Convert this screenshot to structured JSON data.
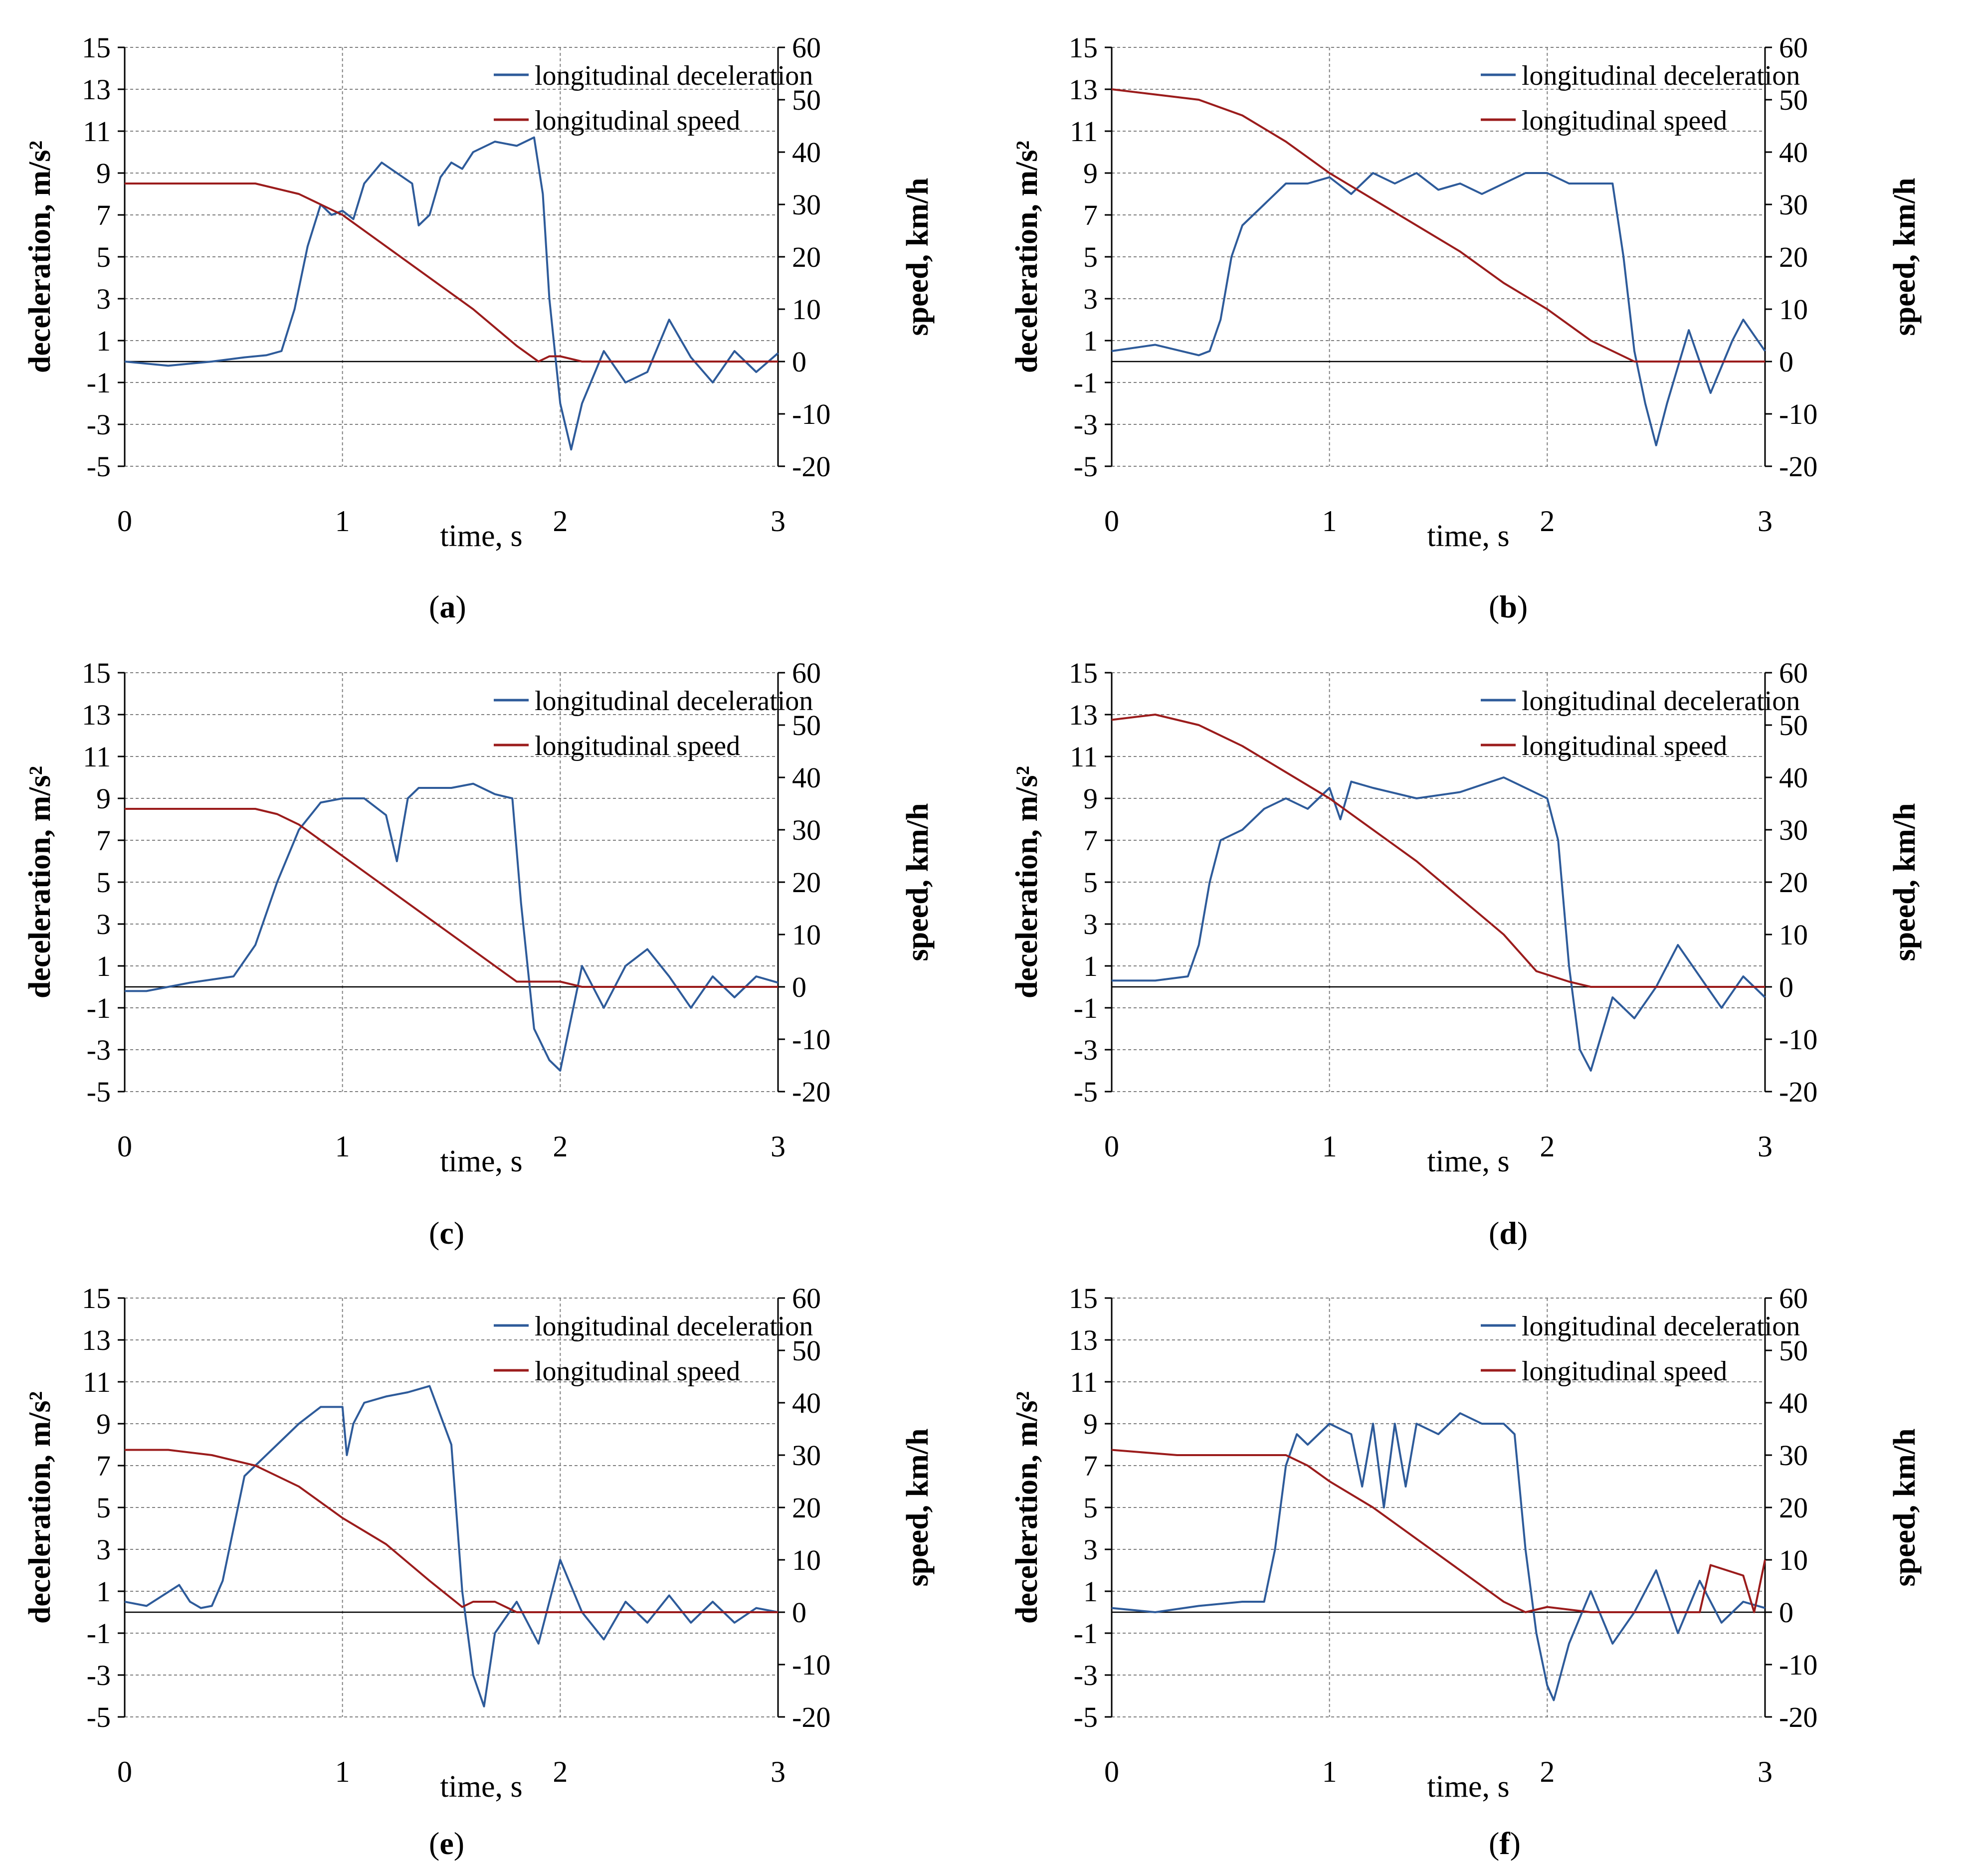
{
  "figure": {
    "panels": [
      "a",
      "b",
      "c",
      "d",
      "e",
      "f"
    ]
  },
  "colors": {
    "deceleration": "#2e5b9a",
    "speed": "#9b1c1c",
    "grid": "#7f7f7f",
    "zero_line": "#000000"
  },
  "chart_data": [
    {
      "panel": "a",
      "caption_letter": "a",
      "type": "line",
      "xlabel": "time, s",
      "ylabel_left": "deceleration, m/s²",
      "ylabel_right": "speed, km/h",
      "xlim": [
        0,
        3
      ],
      "ylim_left": [
        -5,
        15
      ],
      "ylim_right": [
        -20,
        60
      ],
      "x_ticks": [
        0,
        1,
        2,
        3
      ],
      "y_left_ticks": [
        15,
        13,
        11,
        9,
        7,
        5,
        3,
        1,
        -1,
        -3,
        -5
      ],
      "y_right_ticks": [
        60,
        50,
        40,
        30,
        20,
        10,
        0,
        -10,
        -20
      ],
      "legend": [
        "longitudinal deceleration",
        "longitudinal speed"
      ],
      "series": [
        {
          "name": "longitudinal deceleration",
          "axis": "left",
          "x": [
            0,
            0.2,
            0.4,
            0.55,
            0.65,
            0.72,
            0.78,
            0.84,
            0.9,
            0.95,
            1.0,
            1.05,
            1.1,
            1.18,
            1.25,
            1.32,
            1.35,
            1.4,
            1.45,
            1.5,
            1.55,
            1.6,
            1.7,
            1.8,
            1.88,
            1.92,
            1.95,
            2.0,
            2.05,
            2.1,
            2.2,
            2.3,
            2.4,
            2.5,
            2.6,
            2.7,
            2.8,
            2.9,
            3.0
          ],
          "y": [
            0,
            -0.2,
            0,
            0.2,
            0.3,
            0.5,
            2.5,
            5.5,
            7.5,
            7.0,
            7.2,
            6.8,
            8.5,
            9.5,
            9.0,
            8.5,
            6.5,
            7.0,
            8.8,
            9.5,
            9.2,
            10.0,
            10.5,
            10.3,
            10.7,
            8.0,
            3.0,
            -2.0,
            -4.2,
            -2.0,
            0.5,
            -1.0,
            -0.5,
            2.0,
            0.2,
            -1.0,
            0.5,
            -0.5,
            0.4
          ]
        },
        {
          "name": "longitudinal speed",
          "axis": "right",
          "x": [
            0,
            0.3,
            0.6,
            0.8,
            0.9,
            1.0,
            1.2,
            1.4,
            1.6,
            1.8,
            1.9,
            1.95,
            2.0,
            2.1,
            3.0
          ],
          "y": [
            34,
            34,
            34,
            32,
            30,
            28,
            22,
            16,
            10,
            3,
            0,
            1,
            1,
            0,
            0
          ]
        }
      ]
    },
    {
      "panel": "b",
      "caption_letter": "b",
      "type": "line",
      "xlabel": "time, s",
      "ylabel_left": "deceleration, m/s²",
      "ylabel_right": "speed, km/h",
      "xlim": [
        0,
        3
      ],
      "ylim_left": [
        -5,
        15
      ],
      "ylim_right": [
        -20,
        60
      ],
      "x_ticks": [
        0,
        1,
        2,
        3
      ],
      "y_left_ticks": [
        15,
        13,
        11,
        9,
        7,
        5,
        3,
        1,
        -1,
        -3,
        -5
      ],
      "y_right_ticks": [
        60,
        50,
        40,
        30,
        20,
        10,
        0,
        -10,
        -20
      ],
      "legend": [
        "longitudinal deceleration",
        "longitudinal speed"
      ],
      "series": [
        {
          "name": "longitudinal deceleration",
          "axis": "left",
          "x": [
            0,
            0.2,
            0.4,
            0.45,
            0.5,
            0.55,
            0.6,
            0.7,
            0.8,
            0.9,
            1.0,
            1.1,
            1.2,
            1.3,
            1.4,
            1.5,
            1.6,
            1.7,
            1.8,
            1.9,
            2.0,
            2.1,
            2.2,
            2.3,
            2.35,
            2.4,
            2.45,
            2.5,
            2.55,
            2.65,
            2.75,
            2.85,
            2.9,
            3.0
          ],
          "y": [
            0.5,
            0.8,
            0.3,
            0.5,
            2.0,
            5.0,
            6.5,
            7.5,
            8.5,
            8.5,
            8.8,
            8.0,
            9.0,
            8.5,
            9.0,
            8.2,
            8.5,
            8.0,
            8.5,
            9.0,
            9.0,
            8.5,
            8.5,
            8.5,
            5.0,
            0.5,
            -2.0,
            -4.0,
            -2.0,
            1.5,
            -1.5,
            1.0,
            2.0,
            0.5
          ]
        },
        {
          "name": "longitudinal speed",
          "axis": "right",
          "x": [
            0,
            0.2,
            0.4,
            0.6,
            0.8,
            1.0,
            1.2,
            1.4,
            1.6,
            1.8,
            2.0,
            2.2,
            2.35,
            2.4,
            3.0
          ],
          "y": [
            52,
            51,
            50,
            47,
            42,
            36,
            31,
            26,
            21,
            15,
            10,
            4,
            1,
            0,
            0
          ]
        }
      ]
    },
    {
      "panel": "c",
      "caption_letter": "c",
      "type": "line",
      "xlabel": "time, s",
      "ylabel_left": "deceleration, m/s²",
      "ylabel_right": "speed, km/h",
      "xlim": [
        0,
        3
      ],
      "ylim_left": [
        -5,
        15
      ],
      "ylim_right": [
        -20,
        60
      ],
      "x_ticks": [
        0,
        1,
        2,
        3
      ],
      "y_left_ticks": [
        15,
        13,
        11,
        9,
        7,
        5,
        3,
        1,
        -1,
        -3,
        -5
      ],
      "y_right_ticks": [
        60,
        50,
        40,
        30,
        20,
        10,
        0,
        -10,
        -20
      ],
      "legend": [
        "longitudinal deceleration",
        "longitudinal speed"
      ],
      "series": [
        {
          "name": "longitudinal deceleration",
          "axis": "left",
          "x": [
            0,
            0.1,
            0.3,
            0.5,
            0.6,
            0.7,
            0.8,
            0.9,
            1.0,
            1.1,
            1.2,
            1.25,
            1.3,
            1.35,
            1.4,
            1.5,
            1.6,
            1.7,
            1.78,
            1.82,
            1.88,
            1.95,
            2.0,
            2.1,
            2.2,
            2.3,
            2.4,
            2.5,
            2.6,
            2.7,
            2.8,
            2.9,
            3.0
          ],
          "y": [
            -0.2,
            -0.2,
            0.2,
            0.5,
            2.0,
            5.0,
            7.5,
            8.8,
            9.0,
            9.0,
            8.2,
            6.0,
            9.0,
            9.5,
            9.5,
            9.5,
            9.7,
            9.2,
            9.0,
            4.0,
            -2.0,
            -3.5,
            -4.0,
            1.0,
            -1.0,
            1.0,
            1.8,
            0.5,
            -1.0,
            0.5,
            -0.5,
            0.5,
            0.2
          ]
        },
        {
          "name": "longitudinal speed",
          "axis": "right",
          "x": [
            0,
            0.3,
            0.6,
            0.7,
            0.8,
            0.9,
            1.0,
            1.2,
            1.4,
            1.6,
            1.8,
            1.9,
            2.0,
            2.1,
            3.0
          ],
          "y": [
            34,
            34,
            34,
            33,
            31,
            28,
            25,
            19,
            13,
            7,
            1,
            1,
            1,
            0,
            0
          ]
        }
      ]
    },
    {
      "panel": "d",
      "caption_letter": "d",
      "type": "line",
      "xlabel": "time, s",
      "ylabel_left": "deceleration, m/s²",
      "ylabel_right": "speed, km/h",
      "xlim": [
        0,
        3
      ],
      "ylim_left": [
        -5,
        15
      ],
      "ylim_right": [
        -20,
        60
      ],
      "x_ticks": [
        0,
        1,
        2,
        3
      ],
      "y_left_ticks": [
        15,
        13,
        11,
        9,
        7,
        5,
        3,
        1,
        -1,
        -3,
        -5
      ],
      "y_right_ticks": [
        60,
        50,
        40,
        30,
        20,
        10,
        0,
        -10,
        -20
      ],
      "legend": [
        "longitudinal deceleration",
        "longitudinal speed"
      ],
      "series": [
        {
          "name": "longitudinal deceleration",
          "axis": "left",
          "x": [
            0,
            0.2,
            0.35,
            0.4,
            0.45,
            0.5,
            0.6,
            0.7,
            0.8,
            0.9,
            1.0,
            1.05,
            1.1,
            1.2,
            1.4,
            1.6,
            1.8,
            1.9,
            2.0,
            2.05,
            2.1,
            2.15,
            2.2,
            2.3,
            2.4,
            2.5,
            2.6,
            2.7,
            2.8,
            2.9,
            3.0
          ],
          "y": [
            0.3,
            0.3,
            0.5,
            2.0,
            5.0,
            7.0,
            7.5,
            8.5,
            9.0,
            8.5,
            9.5,
            8.0,
            9.8,
            9.5,
            9.0,
            9.3,
            10.0,
            9.5,
            9.0,
            7.0,
            1.0,
            -3.0,
            -4.0,
            -0.5,
            -1.5,
            0,
            2.0,
            0.5,
            -1.0,
            0.5,
            -0.5
          ]
        },
        {
          "name": "longitudinal speed",
          "axis": "right",
          "x": [
            0,
            0.2,
            0.4,
            0.6,
            0.8,
            1.0,
            1.2,
            1.4,
            1.6,
            1.8,
            1.95,
            2.1,
            2.2,
            3.0
          ],
          "y": [
            51,
            52,
            50,
            46,
            41,
            36,
            30,
            24,
            17,
            10,
            3,
            1,
            0,
            0
          ]
        }
      ]
    },
    {
      "panel": "e",
      "caption_letter": "e",
      "type": "line",
      "xlabel": "time, s",
      "ylabel_left": "deceleration, m/s²",
      "ylabel_right": "speed, km/h",
      "xlim": [
        0,
        3
      ],
      "ylim_left": [
        -5,
        15
      ],
      "ylim_right": [
        -20,
        60
      ],
      "x_ticks": [
        0,
        1,
        2,
        3
      ],
      "y_left_ticks": [
        15,
        13,
        11,
        9,
        7,
        5,
        3,
        1,
        -1,
        -3,
        -5
      ],
      "y_right_ticks": [
        60,
        50,
        40,
        30,
        20,
        10,
        0,
        -10,
        -20
      ],
      "legend": [
        "longitudinal deceleration",
        "longitudinal speed"
      ],
      "series": [
        {
          "name": "longitudinal deceleration",
          "axis": "left",
          "x": [
            0,
            0.1,
            0.25,
            0.3,
            0.35,
            0.4,
            0.45,
            0.5,
            0.55,
            0.6,
            0.7,
            0.8,
            0.9,
            1.0,
            1.02,
            1.05,
            1.1,
            1.2,
            1.3,
            1.4,
            1.5,
            1.55,
            1.6,
            1.65,
            1.7,
            1.8,
            1.9,
            2.0,
            2.1,
            2.2,
            2.3,
            2.4,
            2.5,
            2.6,
            2.7,
            2.8,
            2.9,
            3.0
          ],
          "y": [
            0.5,
            0.3,
            1.3,
            0.5,
            0.2,
            0.3,
            1.5,
            4.0,
            6.5,
            7.0,
            8.0,
            9.0,
            9.8,
            9.8,
            7.5,
            9.0,
            10.0,
            10.3,
            10.5,
            10.8,
            8.0,
            1.0,
            -3.0,
            -4.5,
            -1.0,
            0.5,
            -1.5,
            2.5,
            0,
            -1.3,
            0.5,
            -0.5,
            0.8,
            -0.5,
            0.5,
            -0.5,
            0.2,
            0
          ]
        },
        {
          "name": "longitudinal speed",
          "axis": "right",
          "x": [
            0,
            0.2,
            0.4,
            0.6,
            0.7,
            0.8,
            0.9,
            1.0,
            1.2,
            1.4,
            1.55,
            1.6,
            1.7,
            1.8,
            3.0
          ],
          "y": [
            31,
            31,
            30,
            28,
            26,
            24,
            21,
            18,
            13,
            6,
            1,
            2,
            2,
            0,
            0
          ]
        }
      ]
    },
    {
      "panel": "f",
      "caption_letter": "f",
      "type": "line",
      "xlabel": "time, s",
      "ylabel_left": "deceleration, m/s²",
      "ylabel_right": "speed, km/h",
      "xlim": [
        0,
        3
      ],
      "ylim_left": [
        -5,
        15
      ],
      "ylim_right": [
        -20,
        60
      ],
      "x_ticks": [
        0,
        1,
        2,
        3
      ],
      "y_left_ticks": [
        15,
        13,
        11,
        9,
        7,
        5,
        3,
        1,
        -1,
        -3,
        -5
      ],
      "y_right_ticks": [
        60,
        50,
        40,
        30,
        20,
        10,
        0,
        -10,
        -20
      ],
      "legend": [
        "longitudinal deceleration",
        "longitudinal speed"
      ],
      "series": [
        {
          "name": "longitudinal deceleration",
          "axis": "left",
          "x": [
            0,
            0.2,
            0.4,
            0.6,
            0.7,
            0.75,
            0.8,
            0.85,
            0.9,
            1.0,
            1.1,
            1.15,
            1.2,
            1.25,
            1.3,
            1.35,
            1.4,
            1.5,
            1.6,
            1.7,
            1.8,
            1.85,
            1.9,
            1.95,
            2.0,
            2.03,
            2.1,
            2.2,
            2.3,
            2.4,
            2.5,
            2.6,
            2.7,
            2.8,
            2.9,
            3.0
          ],
          "y": [
            0.2,
            0,
            0.3,
            0.5,
            0.5,
            3.0,
            7.0,
            8.5,
            8.0,
            9.0,
            8.5,
            6.0,
            9.0,
            5.0,
            9.0,
            6.0,
            9.0,
            8.5,
            9.5,
            9.0,
            9.0,
            8.5,
            3.0,
            -1.0,
            -3.5,
            -4.2,
            -1.5,
            1.0,
            -1.5,
            0,
            2.0,
            -1.0,
            1.5,
            -0.5,
            0.5,
            0.2
          ]
        },
        {
          "name": "longitudinal speed",
          "axis": "right",
          "x": [
            0,
            0.3,
            0.7,
            0.8,
            0.9,
            1.0,
            1.2,
            1.4,
            1.6,
            1.8,
            1.9,
            2.0,
            2.2,
            2.6,
            2.7,
            2.75,
            2.9,
            2.95,
            3.0
          ],
          "y": [
            31,
            30,
            30,
            30,
            28,
            25,
            20,
            14,
            8,
            2,
            0,
            1,
            0,
            0,
            0,
            9,
            7,
            0,
            10
          ]
        }
      ]
    }
  ]
}
